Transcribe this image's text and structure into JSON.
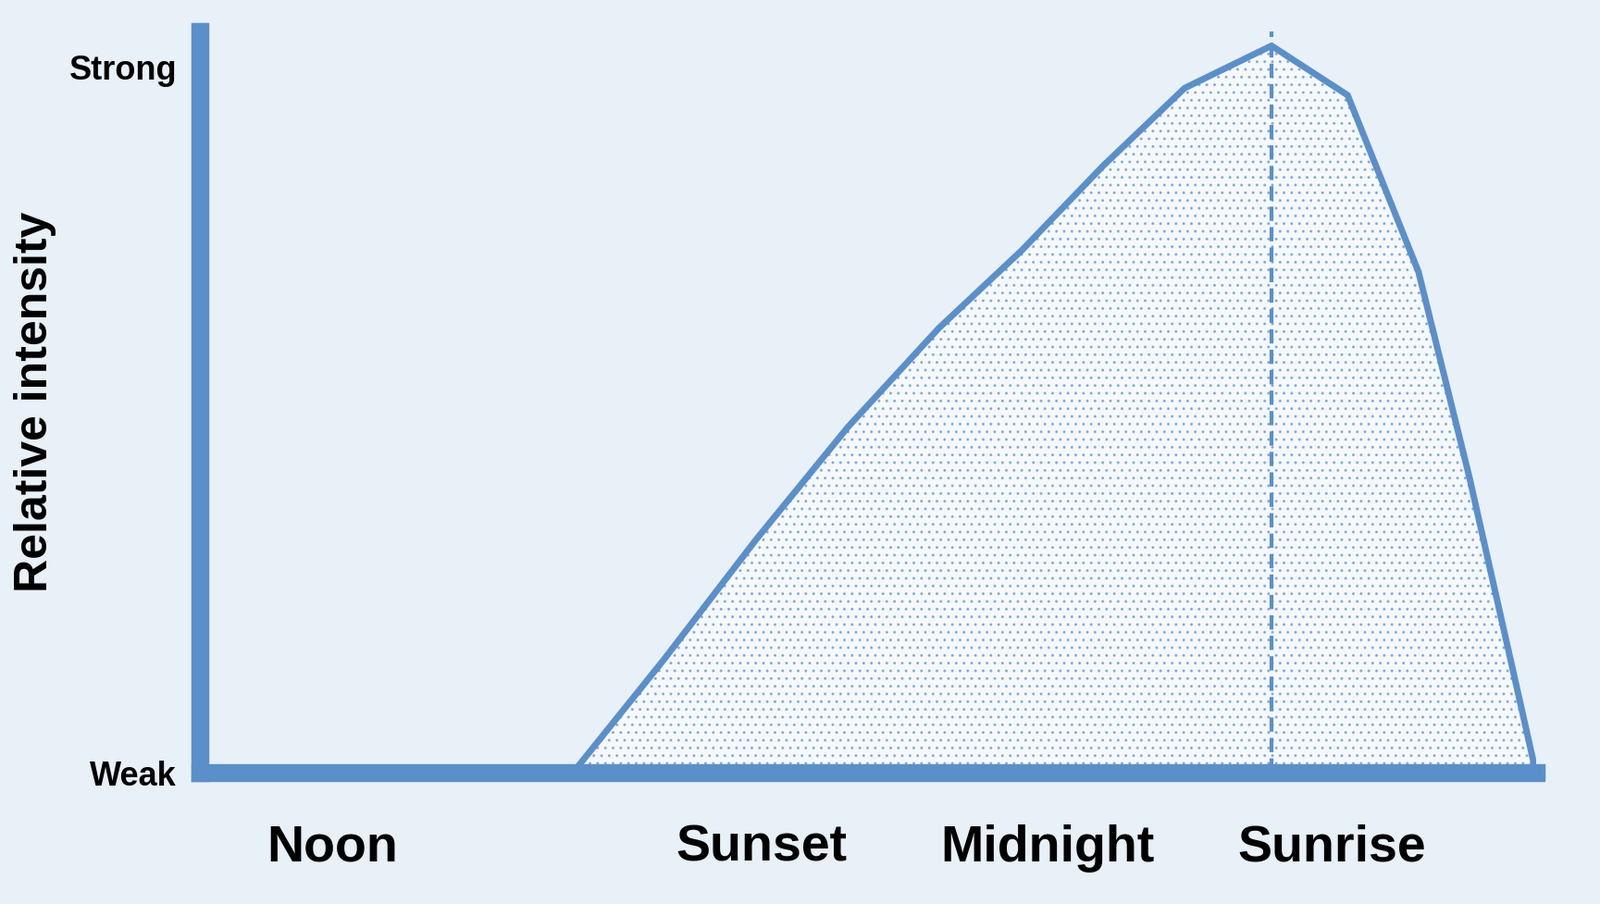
{
  "chart_data": {
    "type": "area",
    "y_label": "Relative intensity",
    "x": [
      27.9,
      34.7,
      41.6,
      48.5,
      55.3,
      61.5,
      67.6,
      73.7,
      80.2,
      85.9,
      91.2,
      95.0,
      98.1,
      100
    ],
    "values": [
      0,
      0.16,
      0.33,
      0.49,
      0.63,
      0.74,
      0.86,
      0.97,
      1.03,
      0.96,
      0.71,
      0.42,
      0.16,
      0
    ],
    "color": "#5b8fc9",
    "peak_x": 80.2,
    "line_style": "dashed",
    "xlim": [
      0,
      100
    ],
    "xticks": [
      {
        "value": 9.9,
        "label": "Noon"
      },
      {
        "value": 42.0,
        "label": "Sunset"
      },
      {
        "value": 63.4,
        "label": "Midnight"
      },
      {
        "value": 84.7,
        "label": "Sunrise"
      }
    ],
    "ylim": [
      0,
      1.05
    ],
    "yticks": [
      {
        "value": 0,
        "label": "Weak"
      },
      {
        "value": 1,
        "label": "Strong"
      }
    ],
    "grid": false
  }
}
